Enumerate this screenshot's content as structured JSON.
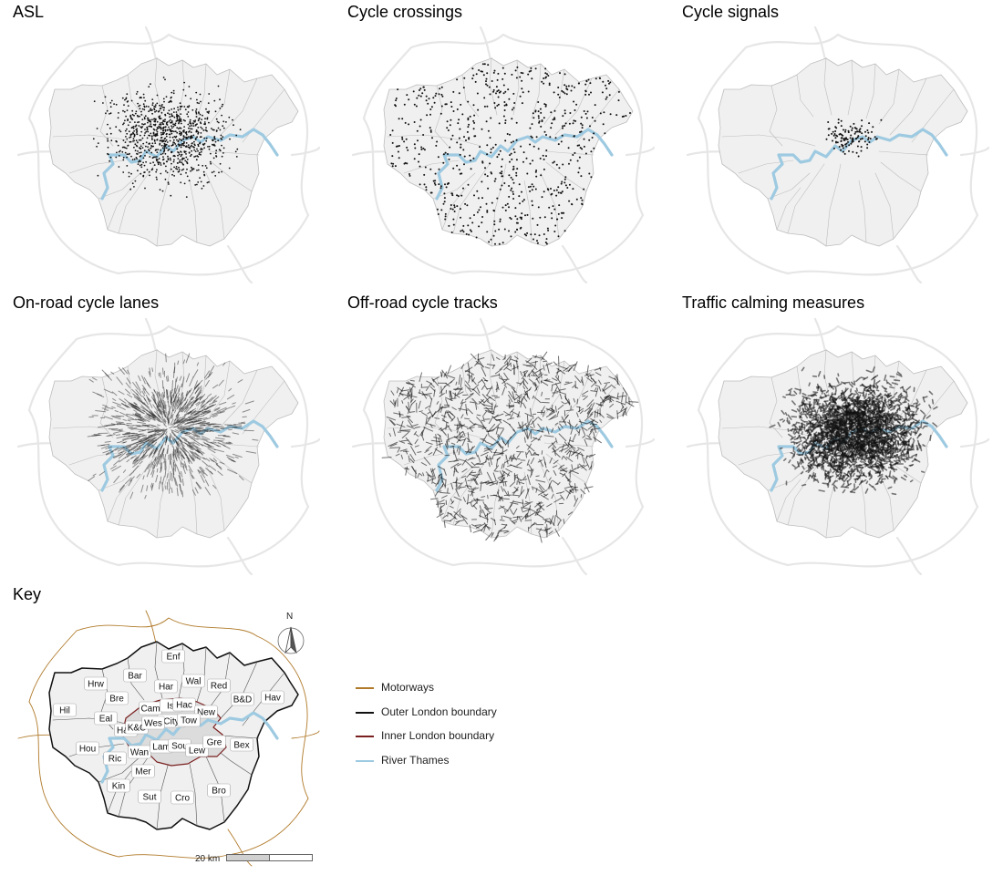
{
  "panels": {
    "asl": {
      "title": "ASL"
    },
    "cycle_crossings": {
      "title": "Cycle crossings"
    },
    "cycle_signals": {
      "title": "Cycle signals"
    },
    "on_road_lanes": {
      "title": "On-road cycle lanes"
    },
    "off_road_tracks": {
      "title": "Off-road cycle tracks"
    },
    "traffic_calming": {
      "title": "Traffic calming measures"
    },
    "key": {
      "title": "Key"
    }
  },
  "borough_labels": [
    "Enf",
    "Bar",
    "Hrw",
    "Har",
    "Wal",
    "Red",
    "Bre",
    "Hav",
    "B&D",
    "Cam",
    "Isl",
    "Hac",
    "New",
    "Hil",
    "Eal",
    "City",
    "Tow",
    "H&F",
    "K&C",
    "Wes",
    "Hou",
    "Ric",
    "Wan",
    "Lam",
    "Sou",
    "Lew",
    "Gre",
    "Bex",
    "Mer",
    "Kin",
    "Sut",
    "Cro",
    "Bro"
  ],
  "legend": {
    "items": [
      {
        "label": "Motorways",
        "color": "#b07a2a"
      },
      {
        "label": "Outer London boundary",
        "color": "#111111"
      },
      {
        "label": "Inner London boundary",
        "color": "#7a1f1f"
      },
      {
        "label": "River Thames",
        "color": "#9ecae1"
      }
    ]
  },
  "scale": {
    "label": "20 km"
  },
  "north": {
    "label": "N"
  },
  "colors": {
    "borough_fill": "#f0f0f0",
    "borough_stroke": "#bdbdbd",
    "roads": "#e6e6e6",
    "thames": "#9ecae1",
    "points": "#111111"
  }
}
